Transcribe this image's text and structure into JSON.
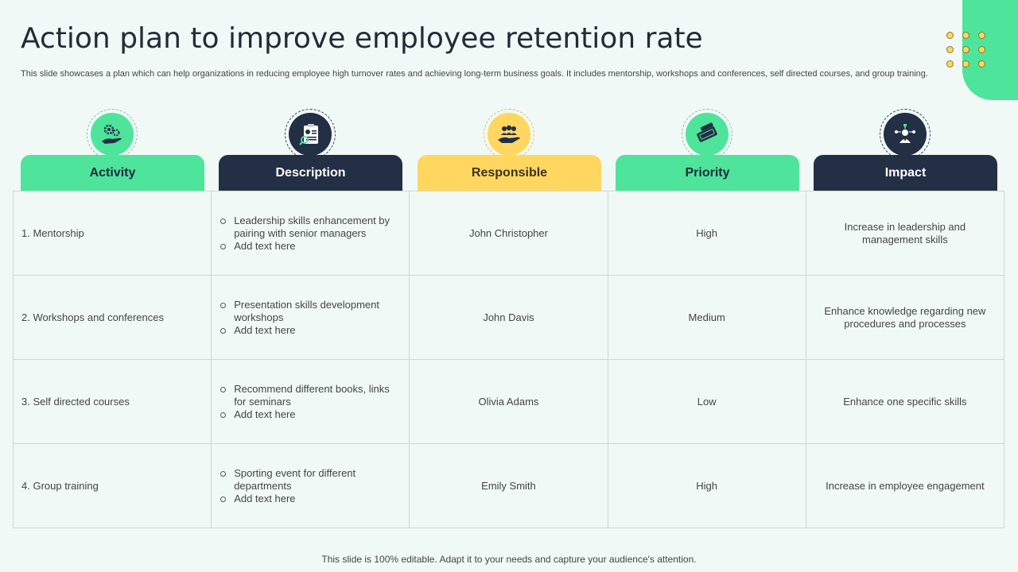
{
  "title": "Action plan to improve employee retention rate",
  "subtitle": "This slide showcases a plan which can help organizations in reducing employee high turnover rates and achieving long-term business goals. It includes mentorship, workshops and conferences, self directed courses, and group training.",
  "colors": {
    "green": "#4ee49c",
    "navy": "#222f45",
    "yellow": "#ffd760",
    "background": "#f1f9f6"
  },
  "columns": [
    {
      "label": "Activity",
      "icon": "hand-gears-icon"
    },
    {
      "label": "Description",
      "icon": "clipboard-profile-icon"
    },
    {
      "label": "Responsible",
      "icon": "hand-team-icon"
    },
    {
      "label": "Priority",
      "icon": "priority-tag-icon"
    },
    {
      "label": "Impact",
      "icon": "leader-network-icon"
    }
  ],
  "rows": [
    {
      "activity": "1. Mentorship",
      "description": [
        "Leadership skills enhancement by pairing with senior managers",
        "Add text here"
      ],
      "responsible": "John Christopher",
      "priority": "High",
      "impact": "Increase in leadership and management skills"
    },
    {
      "activity": "2. Workshops and conferences",
      "description": [
        "Presentation skills development workshops",
        "Add text here"
      ],
      "responsible": "John Davis",
      "priority": "Medium",
      "impact": "Enhance knowledge regarding new procedures and processes"
    },
    {
      "activity": "3. Self directed courses",
      "description": [
        "Recommend different books, links for seminars",
        "Add text here"
      ],
      "responsible": "Olivia  Adams",
      "priority": "Low",
      "impact": "Enhance one specific skills"
    },
    {
      "activity": "4. Group training",
      "description": [
        "Sporting event for different departments",
        "Add text here"
      ],
      "responsible": "Emily Smith",
      "priority": "High",
      "impact": "Increase in employee engagement"
    }
  ],
  "footer": "This slide is 100% editable. Adapt it to your needs and capture your audience's attention."
}
